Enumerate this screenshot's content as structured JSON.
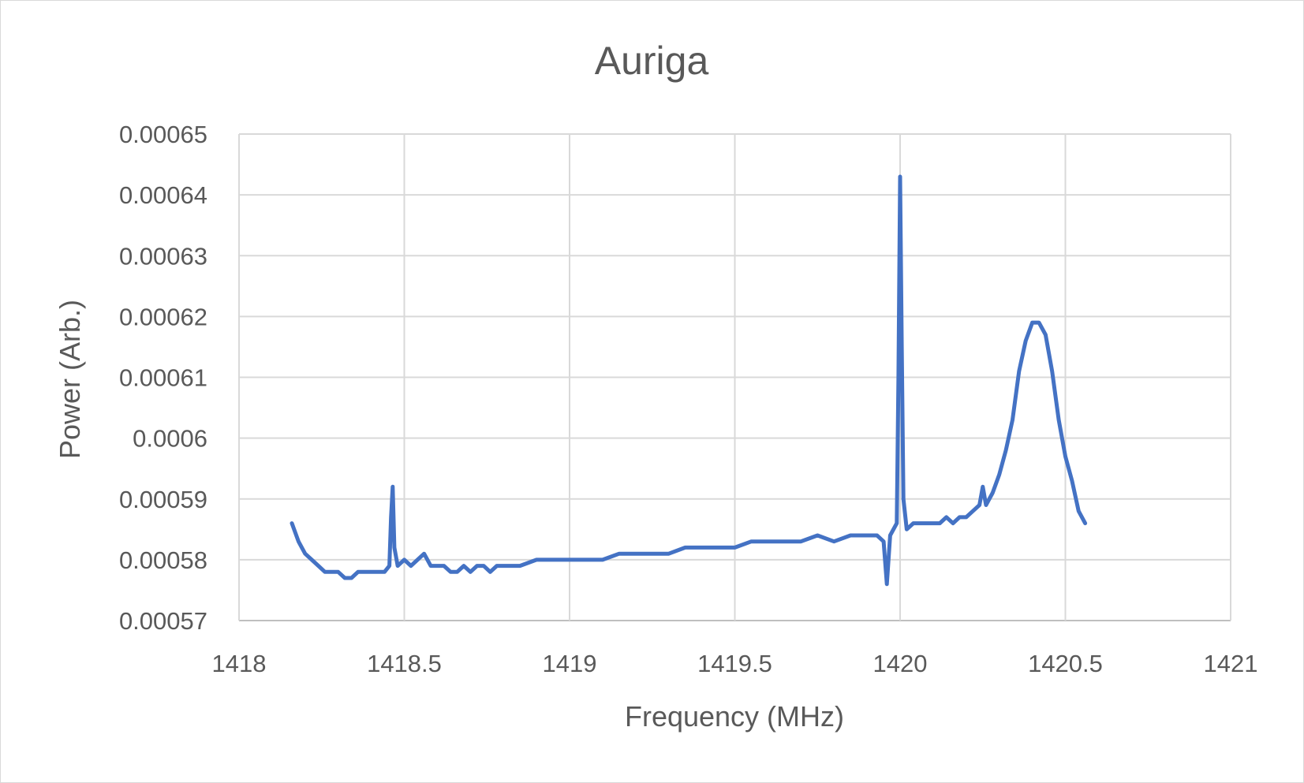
{
  "chart_data": {
    "type": "line",
    "title": "Auriga",
    "xlabel": "Frequency (MHz)",
    "ylabel": "Power (Arb.)",
    "xlim": [
      1418,
      1421
    ],
    "ylim": [
      0.00057,
      0.00065
    ],
    "x_ticks": [
      "1418",
      "1418.5",
      "1419",
      "1419.5",
      "1420",
      "1420.5",
      "1421"
    ],
    "y_ticks": [
      "0.00057",
      "0.00058",
      "0.00059",
      "0.0006",
      "0.00061",
      "0.00062",
      "0.00063",
      "0.00064",
      "0.00065"
    ],
    "grid": true,
    "line_color": "#4472c4",
    "series": [
      {
        "x": [
          1418.16,
          1418.18,
          1418.2,
          1418.22,
          1418.24,
          1418.26,
          1418.28,
          1418.3,
          1418.32,
          1418.34,
          1418.36,
          1418.38,
          1418.4,
          1418.42,
          1418.44,
          1418.455,
          1418.46,
          1418.465,
          1418.47,
          1418.48,
          1418.5,
          1418.52,
          1418.54,
          1418.56,
          1418.58,
          1418.6,
          1418.62,
          1418.64,
          1418.66,
          1418.68,
          1418.7,
          1418.72,
          1418.74,
          1418.76,
          1418.78,
          1418.8,
          1418.85,
          1418.9,
          1418.95,
          1419.0,
          1419.05,
          1419.1,
          1419.15,
          1419.2,
          1419.25,
          1419.3,
          1419.35,
          1419.4,
          1419.45,
          1419.5,
          1419.55,
          1419.6,
          1419.65,
          1419.7,
          1419.75,
          1419.8,
          1419.85,
          1419.9,
          1419.93,
          1419.95,
          1419.96,
          1419.97,
          1419.99,
          1419.995,
          1420.0,
          1420.005,
          1420.01,
          1420.02,
          1420.04,
          1420.06,
          1420.08,
          1420.1,
          1420.12,
          1420.14,
          1420.16,
          1420.18,
          1420.2,
          1420.22,
          1420.24,
          1420.25,
          1420.26,
          1420.28,
          1420.3,
          1420.32,
          1420.34,
          1420.36,
          1420.38,
          1420.4,
          1420.42,
          1420.44,
          1420.46,
          1420.48,
          1420.5,
          1420.52,
          1420.54,
          1420.56
        ],
        "y": [
          0.000586,
          0.000583,
          0.000581,
          0.00058,
          0.000579,
          0.000578,
          0.000578,
          0.000578,
          0.000577,
          0.000577,
          0.000578,
          0.000578,
          0.000578,
          0.000578,
          0.000578,
          0.000579,
          0.000587,
          0.000592,
          0.000582,
          0.000579,
          0.00058,
          0.000579,
          0.00058,
          0.000581,
          0.000579,
          0.000579,
          0.000579,
          0.000578,
          0.000578,
          0.000579,
          0.000578,
          0.000579,
          0.000579,
          0.000578,
          0.000579,
          0.000579,
          0.000579,
          0.00058,
          0.00058,
          0.00058,
          0.00058,
          0.00058,
          0.000581,
          0.000581,
          0.000581,
          0.000581,
          0.000582,
          0.000582,
          0.000582,
          0.000582,
          0.000583,
          0.000583,
          0.000583,
          0.000583,
          0.000584,
          0.000583,
          0.000584,
          0.000584,
          0.000584,
          0.000583,
          0.000576,
          0.000584,
          0.000586,
          0.00061,
          0.000643,
          0.000615,
          0.00059,
          0.000585,
          0.000586,
          0.000586,
          0.000586,
          0.000586,
          0.000586,
          0.000587,
          0.000586,
          0.000587,
          0.000587,
          0.000588,
          0.000589,
          0.000592,
          0.000589,
          0.000591,
          0.000594,
          0.000598,
          0.000603,
          0.000611,
          0.000616,
          0.000619,
          0.000619,
          0.000617,
          0.000611,
          0.000603,
          0.000597,
          0.000593,
          0.000588,
          0.000586
        ]
      }
    ]
  }
}
